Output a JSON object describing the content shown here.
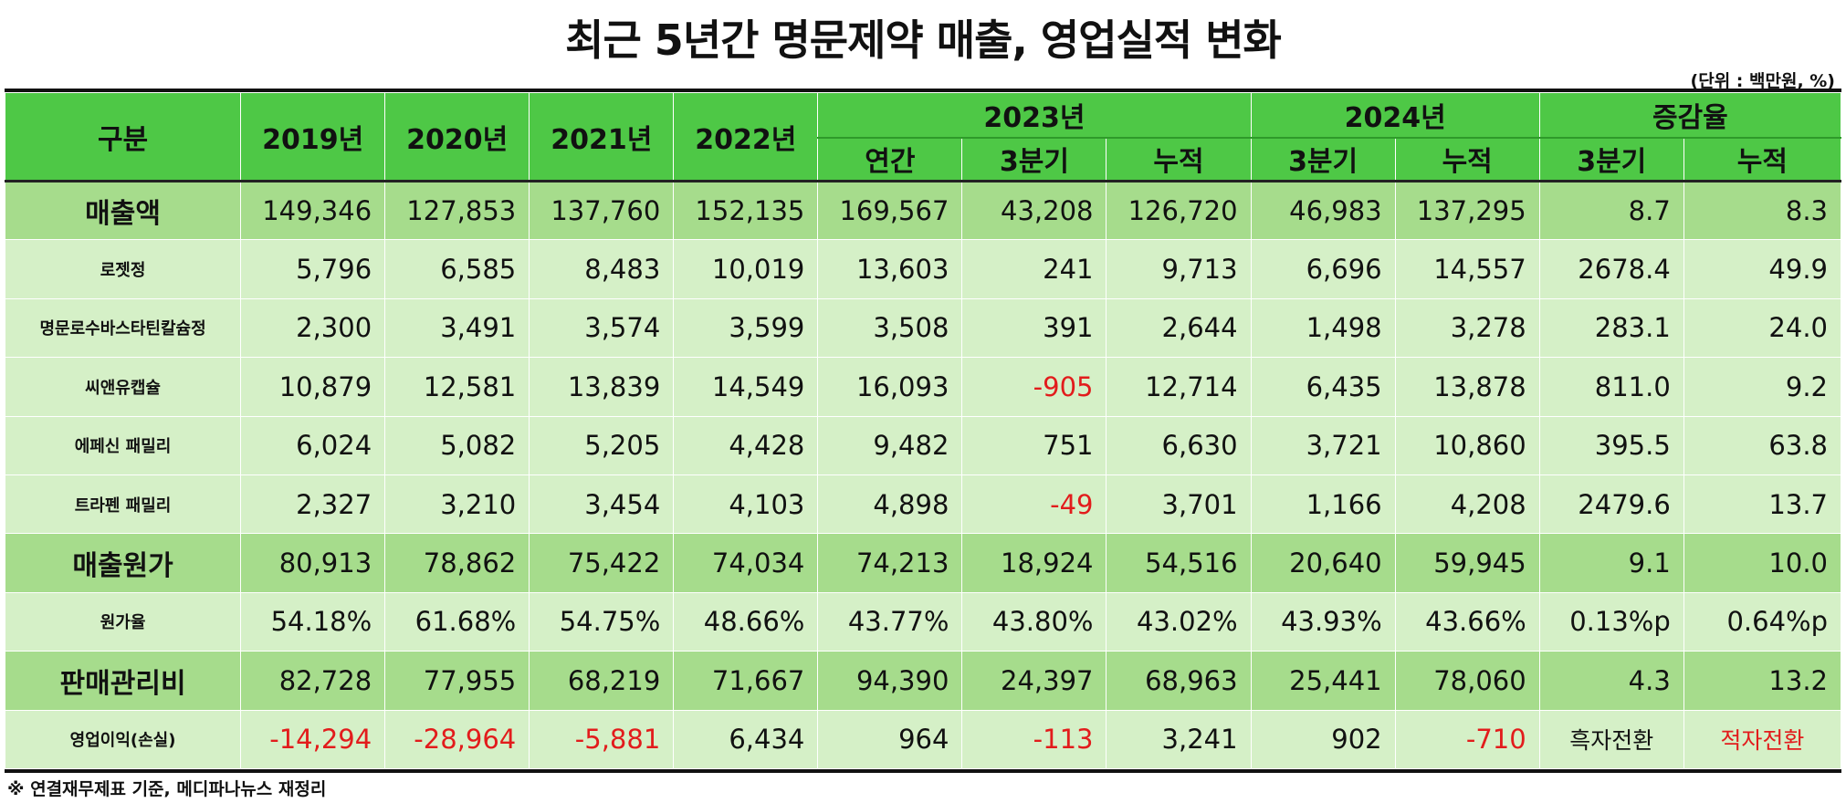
{
  "title": "최근 5년간 명문제약 매출, 영업실적 변화",
  "unit": "(단위 : 백만원, %)",
  "note": "※ 연결재무제표 기준, 메디파나뉴스 재정리",
  "header": {
    "category": "구분",
    "years": [
      "2019년",
      "2020년",
      "2021년",
      "2022년"
    ],
    "group_2023": "2023년",
    "group_2024": "2024년",
    "group_change": "증감율",
    "sub_2023": [
      "연간",
      "3분기",
      "누적"
    ],
    "sub_2024": [
      "3분기",
      "누적"
    ],
    "sub_change": [
      "3분기",
      "누적"
    ]
  },
  "rows": [
    {
      "label": "매출액",
      "type": "major",
      "values": [
        "149,346",
        "127,853",
        "137,760",
        "152,135",
        "169,567",
        "43,208",
        "126,720",
        "46,983",
        "137,295",
        "8.7",
        "8.3"
      ],
      "negative": []
    },
    {
      "label": "로젯정",
      "type": "minor",
      "values": [
        "5,796",
        "6,585",
        "8,483",
        "10,019",
        "13,603",
        "241",
        "9,713",
        "6,696",
        "14,557",
        "2678.4",
        "49.9"
      ],
      "negative": []
    },
    {
      "label": "명문로수바스타틴칼슘정",
      "type": "minor",
      "values": [
        "2,300",
        "3,491",
        "3,574",
        "3,599",
        "3,508",
        "391",
        "2,644",
        "1,498",
        "3,278",
        "283.1",
        "24.0"
      ],
      "negative": []
    },
    {
      "label": "씨앤유캡슐",
      "type": "minor",
      "values": [
        "10,879",
        "12,581",
        "13,839",
        "14,549",
        "16,093",
        "-905",
        "12,714",
        "6,435",
        "13,878",
        "811.0",
        "9.2"
      ],
      "negative": [
        5
      ]
    },
    {
      "label": "에페신 패밀리",
      "type": "minor",
      "values": [
        "6,024",
        "5,082",
        "5,205",
        "4,428",
        "9,482",
        "751",
        "6,630",
        "3,721",
        "10,860",
        "395.5",
        "63.8"
      ],
      "negative": []
    },
    {
      "label": "트라펜 패밀리",
      "type": "minor",
      "values": [
        "2,327",
        "3,210",
        "3,454",
        "4,103",
        "4,898",
        "-49",
        "3,701",
        "1,166",
        "4,208",
        "2479.6",
        "13.7"
      ],
      "negative": [
        5
      ]
    },
    {
      "label": "매출원가",
      "type": "major",
      "values": [
        "80,913",
        "78,862",
        "75,422",
        "74,034",
        "74,213",
        "18,924",
        "54,516",
        "20,640",
        "59,945",
        "9.1",
        "10.0"
      ],
      "negative": []
    },
    {
      "label": "원가율",
      "type": "minor",
      "values": [
        "54.18%",
        "61.68%",
        "54.75%",
        "48.66%",
        "43.77%",
        "43.80%",
        "43.02%",
        "43.93%",
        "43.66%",
        "0.13%p",
        "0.64%p"
      ],
      "negative": []
    },
    {
      "label": "판매관리비",
      "type": "major",
      "values": [
        "82,728",
        "77,955",
        "68,219",
        "71,667",
        "94,390",
        "24,397",
        "68,963",
        "25,441",
        "78,060",
        "4.3",
        "13.2"
      ],
      "negative": []
    },
    {
      "label": "영업이익(손실)",
      "type": "minor",
      "values": [
        "-14,294",
        "-28,964",
        "-5,881",
        "6,434",
        "964",
        "-113",
        "3,241",
        "902",
        "-710",
        "흑자전환",
        "적자전환"
      ],
      "negative": [
        0,
        1,
        2,
        5,
        8,
        10
      ]
    }
  ],
  "colors": {
    "header_green": "#4ec846",
    "major_row": "#a6dc8c",
    "minor_row": "#d5f0c7",
    "negative_red": "#e21c1c"
  }
}
